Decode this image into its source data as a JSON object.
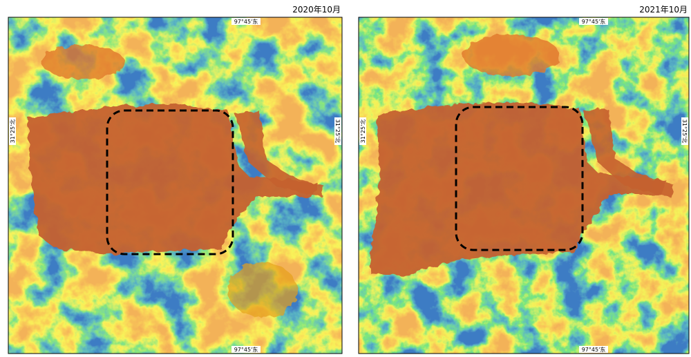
{
  "panels": [
    {
      "title": "2020年10月",
      "top_label": "97°45'东",
      "bottom_label": "97°45'东",
      "left_label": "31°25'北",
      "right_label": "31°25'北"
    },
    {
      "title": "2021年10月",
      "top_label": "97°45'东",
      "bottom_label": "97°45'东",
      "left_label": "31°25'北",
      "right_label": "31°25'北"
    }
  ]
}
